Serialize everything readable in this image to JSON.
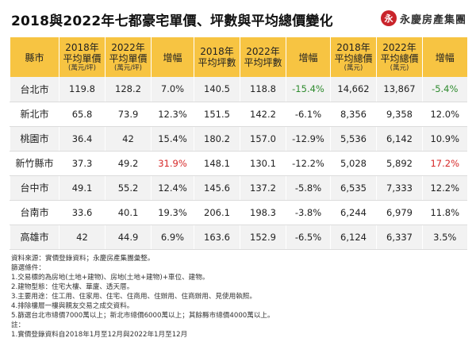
{
  "title": "2018與2022年七都豪宅單價、坪數與平均總價變化",
  "logo": {
    "mark": "永",
    "text": "永慶房產集團"
  },
  "table": {
    "headers": [
      {
        "line1": "縣市",
        "line2": ""
      },
      {
        "line1": "2018年",
        "line2": "平均單價",
        "line3": "(萬元/坪)"
      },
      {
        "line1": "2022年",
        "line2": "平均單價",
        "line3": "(萬元/坪)"
      },
      {
        "line1": "增幅",
        "line2": ""
      },
      {
        "line1": "2018年",
        "line2": "平均坪數",
        "line3": ""
      },
      {
        "line1": "2022年",
        "line2": "平均坪數",
        "line3": ""
      },
      {
        "line1": "增幅",
        "line2": ""
      },
      {
        "line1": "2018年",
        "line2": "平均總價",
        "line3": "(萬元)"
      },
      {
        "line1": "2022年",
        "line2": "平均總價",
        "line3": "(萬元)"
      },
      {
        "line1": "增幅",
        "line2": ""
      }
    ],
    "rows": [
      {
        "city": "台北市",
        "p18": "119.8",
        "p22": "128.2",
        "pg": "7.0%",
        "s18": "140.5",
        "s22": "118.8",
        "sg": "-15.4%",
        "t18": "14,662",
        "t22": "13,867",
        "tg": "-5.4%"
      },
      {
        "city": "新北市",
        "p18": "65.8",
        "p22": "73.9",
        "pg": "12.3%",
        "s18": "151.5",
        "s22": "142.2",
        "sg": "-6.1%",
        "t18": "8,356",
        "t22": "9,358",
        "tg": "12.0%"
      },
      {
        "city": "桃園市",
        "p18": "36.4",
        "p22": "42",
        "pg": "15.4%",
        "s18": "180.2",
        "s22": "157.0",
        "sg": "-12.9%",
        "t18": "5,536",
        "t22": "6,142",
        "tg": "10.9%"
      },
      {
        "city": "新竹縣市",
        "p18": "37.3",
        "p22": "49.2",
        "pg": "31.9%",
        "s18": "148.1",
        "s22": "130.1",
        "sg": "-12.2%",
        "t18": "5,028",
        "t22": "5,892",
        "tg": "17.2%"
      },
      {
        "city": "台中市",
        "p18": "49.1",
        "p22": "55.2",
        "pg": "12.4%",
        "s18": "145.6",
        "s22": "137.2",
        "sg": "-5.8%",
        "t18": "6,535",
        "t22": "7,333",
        "tg": "12.2%"
      },
      {
        "city": "台南市",
        "p18": "33.6",
        "p22": "40.1",
        "pg": "19.3%",
        "s18": "206.1",
        "s22": "198.3",
        "sg": "-3.8%",
        "t18": "6,244",
        "t22": "6,979",
        "tg": "11.8%"
      },
      {
        "city": "高雄市",
        "p18": "42",
        "p22": "44.9",
        "pg": "6.9%",
        "s18": "163.6",
        "s22": "152.9",
        "sg": "-6.5%",
        "t18": "6,124",
        "t22": "6,337",
        "tg": "3.5%"
      }
    ]
  },
  "notes": [
    "資料來源：實價登錄資料；永慶房產集團彙整。",
    "篩選條件：",
    "1.交易標的為房地(土地+建物)、房地(土地+建物)+車位、建物。",
    "2.建物型態：住宅大樓、華廈、透天厝。",
    "3.主要用途：住工用、住家用、住宅、住商用、住辦用、住商辦用、見使用執照。",
    "4.排除樓層一樓與親友交易之成交資料。",
    "5.篩選台北市總價7000萬以上；新北市總價6000萬以上；其餘縣市總價4000萬以上。",
    "註：",
    "1.實價登錄資料自2018年1月至12月與2022年1月至12月"
  ],
  "colors": {
    "header": "#f7c442",
    "negative": "#2e8b2e",
    "highlight": "#d62828"
  }
}
